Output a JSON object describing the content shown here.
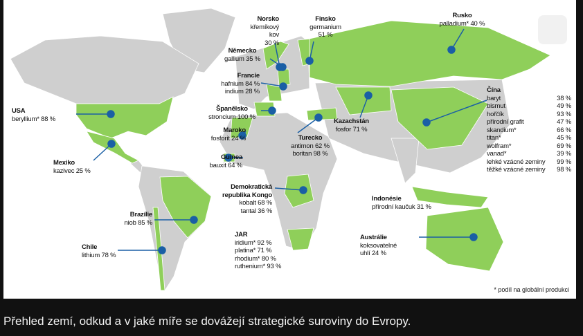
{
  "labels": [
    {
      "title": "Norsko",
      "lines": [
        "křemíkový kov",
        "30 %"
      ]
    },
    {
      "title": "Finsko",
      "lines": [
        "germanium",
        "51 %"
      ]
    },
    {
      "title": "Rusko",
      "lines": [
        "palladium* 40 %"
      ]
    },
    {
      "title": "Německo",
      "lines": [
        "gallium 35 %"
      ]
    },
    {
      "title": "Francie",
      "lines": [
        "hafnium 84 %",
        "indium 28 %"
      ]
    },
    {
      "title": "Španělsko",
      "lines": [
        "stroncium 100 %"
      ]
    },
    {
      "title": "Maroko",
      "lines": [
        "fosforit 24 %"
      ]
    },
    {
      "title": "Guinea",
      "lines": [
        "bauxit 64 %"
      ]
    },
    {
      "title": "Turecko",
      "lines": [
        "antimon 62 %",
        "boritan 98 %"
      ]
    },
    {
      "title": "Kazachstán",
      "lines": [
        "fosfor 71 %"
      ]
    },
    {
      "title": "USA",
      "lines": [
        "beryllium* 88 %"
      ]
    },
    {
      "title": "Mexiko",
      "lines": [
        "kazivec 25 %"
      ]
    },
    {
      "title": "Brazílie",
      "lines": [
        "niob 85 %"
      ]
    },
    {
      "title": "Chile",
      "lines": [
        "lithium 78 %"
      ]
    },
    {
      "title": "Demokratická republika Kongo",
      "lines": [
        "kobalt 68 %",
        "tantal 36 %"
      ]
    },
    {
      "title": "JAR",
      "lines": [
        "iridium* 92 %",
        "platina* 71 %",
        "rhodium* 80 %",
        "ruthenium* 93 %"
      ]
    },
    {
      "title": "Indonésie",
      "lines": [
        "přírodní kaučuk 31 %"
      ]
    },
    {
      "title": "Austrálie",
      "lines": [
        "koksovatelné",
        "uhlí 24 %"
      ]
    },
    {
      "title": "Čína",
      "rows": [
        [
          "baryt",
          "38 %"
        ],
        [
          "bismut",
          "49 %"
        ],
        [
          "hořčík",
          "93 %"
        ],
        [
          "přírodní grafit",
          "47 %"
        ],
        [
          "skandium*",
          "66 %"
        ],
        [
          "titan*",
          "45 %"
        ],
        [
          "wolfram*",
          "69 %"
        ],
        [
          "vanad*",
          "39 %"
        ],
        [
          "lehké vzácné zeminy",
          "99 %"
        ],
        [
          "těžké vzácné zeminy",
          "98 %"
        ]
      ]
    }
  ],
  "footnote": "* podíl na globální produkci",
  "caption": "Přehled zemí, odkud a v jaké míře se dovážejí strategické suroviny do Evropy."
}
